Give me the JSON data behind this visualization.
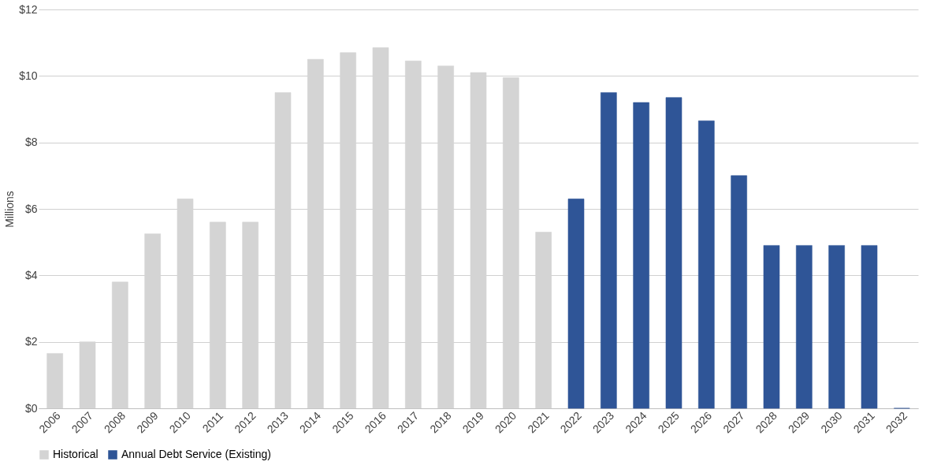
{
  "chart_data": {
    "type": "bar",
    "ylabel": "Millions",
    "categories": [
      "2006",
      "2007",
      "2008",
      "2009",
      "2010",
      "2011",
      "2012",
      "2013",
      "2014",
      "2015",
      "2016",
      "2017",
      "2018",
      "2019",
      "2020",
      "2021",
      "2022",
      "2023",
      "2024",
      "2025",
      "2026",
      "2027",
      "2028",
      "2029",
      "2030",
      "2031",
      "2032"
    ],
    "series": [
      {
        "name": "Historical",
        "color": "#d4d4d4",
        "values": [
          1.65,
          2.0,
          3.8,
          5.25,
          6.3,
          5.6,
          5.6,
          9.5,
          10.5,
          10.7,
          10.85,
          10.45,
          10.3,
          10.1,
          9.95,
          5.3,
          null,
          null,
          null,
          null,
          null,
          null,
          null,
          null,
          null,
          null,
          null
        ]
      },
      {
        "name": "Annual Debt Service (Existing)",
        "color": "#2f5597",
        "values": [
          null,
          null,
          null,
          null,
          null,
          null,
          null,
          null,
          null,
          null,
          null,
          null,
          null,
          null,
          null,
          null,
          6.3,
          9.5,
          9.2,
          9.35,
          8.65,
          7.0,
          4.9,
          4.9,
          4.9,
          4.9,
          0
        ]
      }
    ],
    "ylim": [
      0,
      12
    ],
    "yticks": [
      {
        "value": 0,
        "label": "$0"
      },
      {
        "value": 2,
        "label": "$2"
      },
      {
        "value": 4,
        "label": "$4"
      },
      {
        "value": 6,
        "label": "$6"
      },
      {
        "value": 8,
        "label": "$8"
      },
      {
        "value": 10,
        "label": "$10"
      },
      {
        "value": 12,
        "label": "$12"
      }
    ],
    "grid": "y",
    "legend": "bottom"
  }
}
